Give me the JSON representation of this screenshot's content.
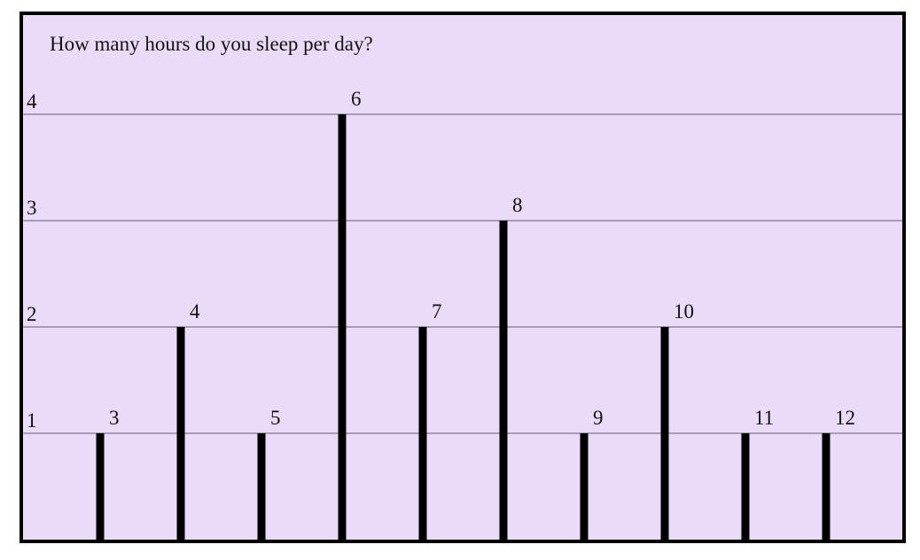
{
  "chart_data": {
    "type": "bar",
    "title": "How many hours do you sleep per day?",
    "categories": [
      "3",
      "4",
      "5",
      "6",
      "7",
      "8",
      "9",
      "10",
      "11",
      "12"
    ],
    "values": [
      1,
      2,
      1,
      4,
      2,
      3,
      1,
      2,
      1,
      1
    ],
    "y_ticks": [
      "1",
      "2",
      "3",
      "4"
    ],
    "ylim": [
      0,
      4
    ],
    "xlabel": "",
    "ylabel": "",
    "grid": true,
    "legend": "none",
    "colors": {
      "background": "#eadcf8",
      "bar": "#000000",
      "grid": "#a89bb5",
      "border": "#000000"
    }
  }
}
